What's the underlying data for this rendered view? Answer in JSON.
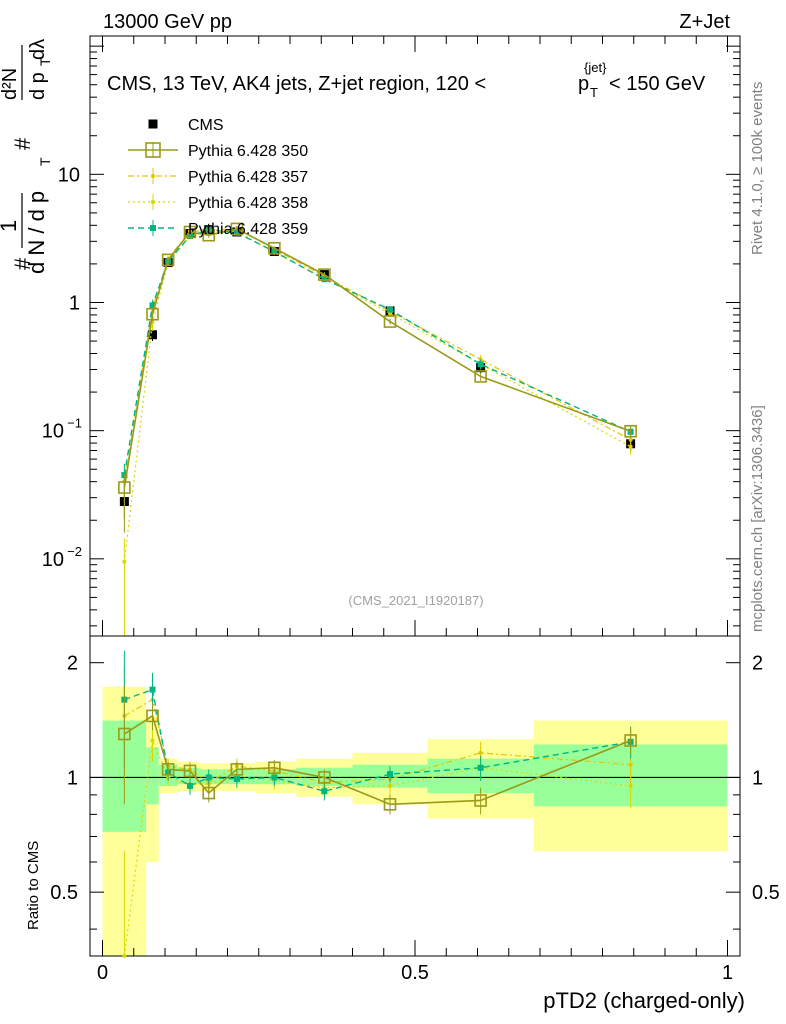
{
  "header": {
    "left": "13000 GeV pp",
    "right": "Z+Jet"
  },
  "side_labels": {
    "rivet": "Rivet 4.1.0, ≥ 100k events",
    "mcplots": "mcplots.cern.ch [arXiv:1306.3436]"
  },
  "watermark": "(CMS_2021_I1920187)",
  "plot_title": {
    "prefix": "CMS, 13 TeV, AK4 jets, Z+jet region, 120 <",
    "p": "p",
    "T": "T",
    "jet": "{jet}",
    "suffix": "< 150 GeV"
  },
  "y_axis_label": {
    "hash1": "#",
    "one": "1",
    "dN": "d N / d p",
    "T": "T",
    "hash2": "#",
    "d2N_num": "d²N",
    "d2N_den": "d p",
    "T2": "T",
    "dlambda": "dλ"
  },
  "colors": {
    "cms": "#000000",
    "p350": "#9a9a1a",
    "p357": "#e6c400",
    "p358": "#d8d800",
    "p359": "#00b580",
    "band_green": "#99ff99",
    "band_yellow": "#ffff99"
  },
  "chart_data": [
    {
      "type": "scatter",
      "panel": "main",
      "xlabel": "pTD2 (charged-only)",
      "ylabel": "1/N dN/dpT d2N/dpT dlambda",
      "yscale": "log",
      "xlim": [
        -0.02,
        1.02
      ],
      "ylim": [
        0.0025,
        120
      ],
      "y_ticks": [
        {
          "v": 0.01,
          "base": "10",
          "exp": "−2"
        },
        {
          "v": 0.1,
          "base": "10",
          "exp": "−1"
        },
        {
          "v": 1,
          "base": "1",
          "exp": ""
        },
        {
          "v": 10,
          "base": "10",
          "exp": ""
        }
      ],
      "x": [
        0.035,
        0.08,
        0.105,
        0.14,
        0.17,
        0.215,
        0.275,
        0.355,
        0.46,
        0.605,
        0.845
      ],
      "series": [
        {
          "name": "CMS",
          "key": "cms",
          "style": "marker",
          "values": [
            0.028,
            0.56,
            2.05,
            3.45,
            3.7,
            3.55,
            2.5,
            1.65,
            0.86,
            0.31,
            0.079
          ],
          "err_lo": [
            0.007,
            0.06,
            0.15,
            0.2,
            0.2,
            0.2,
            0.15,
            0.1,
            0.06,
            0.03,
            0.01
          ],
          "err_hi": [
            0.008,
            0.06,
            0.15,
            0.2,
            0.2,
            0.2,
            0.15,
            0.1,
            0.06,
            0.03,
            0.01
          ]
        },
        {
          "name": "Pythia 6.428 350",
          "key": "p350",
          "style": "solid-open-square",
          "values": [
            0.036,
            0.81,
            2.15,
            3.55,
            3.35,
            3.75,
            2.65,
            1.65,
            0.71,
            0.265,
            0.099
          ],
          "err_lo": [
            0.02,
            0.1,
            0.1,
            0.15,
            0.15,
            0.15,
            0.1,
            0.08,
            0.04,
            0.02,
            0.01
          ],
          "err_hi": [
            0.01,
            0.1,
            0.1,
            0.15,
            0.15,
            0.15,
            0.1,
            0.08,
            0.04,
            0.02,
            0.01
          ]
        },
        {
          "name": "Pythia 6.428 357",
          "key": "p357",
          "style": "dashdot-small",
          "values": [
            0.04,
            0.9,
            2.2,
            3.6,
            3.6,
            3.8,
            2.6,
            1.6,
            0.85,
            0.36,
            0.085
          ],
          "err_lo": [
            0.02,
            0.1,
            0.1,
            0.15,
            0.15,
            0.15,
            0.1,
            0.08,
            0.04,
            0.03,
            0.01
          ],
          "err_hi": [
            0.015,
            0.1,
            0.1,
            0.15,
            0.15,
            0.15,
            0.1,
            0.08,
            0.04,
            0.03,
            0.01
          ]
        },
        {
          "name": "Pythia 6.428 358",
          "key": "p358",
          "style": "dotted-small",
          "values": [
            0.0095,
            0.7,
            2.05,
            3.3,
            3.55,
            3.6,
            2.45,
            1.55,
            0.82,
            0.33,
            0.075
          ],
          "err_lo": [
            0.007,
            0.1,
            0.1,
            0.15,
            0.15,
            0.15,
            0.1,
            0.08,
            0.04,
            0.03,
            0.01
          ],
          "err_hi": [
            0.005,
            0.1,
            0.1,
            0.15,
            0.15,
            0.15,
            0.1,
            0.08,
            0.04,
            0.03,
            0.01
          ]
        },
        {
          "name": "Pythia 6.428 359",
          "key": "p359",
          "style": "dashed-square",
          "values": [
            0.045,
            0.95,
            2.1,
            3.3,
            3.7,
            3.5,
            2.5,
            1.52,
            0.88,
            0.33,
            0.098
          ],
          "err_lo": [
            0.015,
            0.1,
            0.1,
            0.15,
            0.15,
            0.15,
            0.1,
            0.08,
            0.04,
            0.03,
            0.01
          ],
          "err_hi": [
            0.01,
            0.1,
            0.1,
            0.15,
            0.15,
            0.15,
            0.1,
            0.08,
            0.04,
            0.03,
            0.01
          ]
        }
      ]
    },
    {
      "type": "scatter",
      "panel": "ratio",
      "xlabel": "pTD2 (charged-only)",
      "ylabel": "Ratio to CMS",
      "xlim": [
        -0.02,
        1.02
      ],
      "ylim": [
        0.34,
        2.35
      ],
      "y_ticks": [
        0.5,
        1,
        2
      ],
      "x_ticks": [
        {
          "v": 0,
          "label": "0"
        },
        {
          "v": 0.5,
          "label": "0.5"
        },
        {
          "v": 1,
          "label": "1"
        }
      ],
      "reference": 1,
      "bins": [
        {
          "lo": 0.0,
          "hi": 0.07,
          "green": [
            0.72,
            1.41
          ],
          "yellow": [
            0.3,
            1.73
          ]
        },
        {
          "lo": 0.07,
          "hi": 0.09,
          "green": [
            0.85,
            1.2
          ],
          "yellow": [
            0.6,
            1.45
          ]
        },
        {
          "lo": 0.09,
          "hi": 0.12,
          "green": [
            0.95,
            1.08
          ],
          "yellow": [
            0.91,
            1.12
          ]
        },
        {
          "lo": 0.12,
          "hi": 0.155,
          "green": [
            0.96,
            1.06
          ],
          "yellow": [
            0.92,
            1.1
          ]
        },
        {
          "lo": 0.155,
          "hi": 0.185,
          "green": [
            0.96,
            1.05
          ],
          "yellow": [
            0.92,
            1.09
          ]
        },
        {
          "lo": 0.185,
          "hi": 0.245,
          "green": [
            0.96,
            1.05
          ],
          "yellow": [
            0.92,
            1.09
          ]
        },
        {
          "lo": 0.245,
          "hi": 0.31,
          "green": [
            0.96,
            1.05
          ],
          "yellow": [
            0.91,
            1.1
          ]
        },
        {
          "lo": 0.31,
          "hi": 0.4,
          "green": [
            0.95,
            1.06
          ],
          "yellow": [
            0.89,
            1.12
          ]
        },
        {
          "lo": 0.4,
          "hi": 0.52,
          "green": [
            0.94,
            1.08
          ],
          "yellow": [
            0.85,
            1.16
          ]
        },
        {
          "lo": 0.52,
          "hi": 0.69,
          "green": [
            0.91,
            1.12
          ],
          "yellow": [
            0.78,
            1.26
          ]
        },
        {
          "lo": 0.69,
          "hi": 1.0,
          "green": [
            0.84,
            1.22
          ],
          "yellow": [
            0.64,
            1.41
          ]
        }
      ],
      "x": [
        0.035,
        0.08,
        0.105,
        0.14,
        0.17,
        0.215,
        0.275,
        0.355,
        0.46,
        0.605,
        0.845
      ],
      "series": [
        {
          "name": "Pythia 6.428 350",
          "key": "p350",
          "values": [
            1.3,
            1.45,
            1.05,
            1.04,
            0.91,
            1.05,
            1.06,
            1.0,
            0.85,
            0.87,
            1.25
          ],
          "err": [
            0.45,
            0.12,
            0.05,
            0.05,
            0.05,
            0.05,
            0.05,
            0.05,
            0.05,
            0.07,
            0.1
          ]
        },
        {
          "name": "Pythia 6.428 357",
          "key": "p357",
          "values": [
            1.45,
            1.6,
            1.07,
            1.05,
            0.97,
            1.07,
            1.04,
            0.97,
            0.99,
            1.16,
            1.08
          ],
          "err": [
            0.5,
            0.15,
            0.05,
            0.05,
            0.05,
            0.05,
            0.05,
            0.05,
            0.05,
            0.08,
            0.12
          ]
        },
        {
          "name": "Pythia 6.428 358",
          "key": "p358",
          "values": [
            0.34,
            1.25,
            1.0,
            0.96,
            0.96,
            1.01,
            0.98,
            0.94,
            0.95,
            1.06,
            0.95
          ],
          "err": [
            0.3,
            0.15,
            0.05,
            0.05,
            0.05,
            0.05,
            0.05,
            0.05,
            0.05,
            0.08,
            0.12
          ]
        },
        {
          "name": "Pythia 6.428 359",
          "key": "p359",
          "values": [
            1.6,
            1.7,
            1.03,
            0.95,
            1.0,
            0.99,
            1.0,
            0.92,
            1.02,
            1.06,
            1.24
          ],
          "err": [
            0.55,
            0.18,
            0.05,
            0.05,
            0.05,
            0.05,
            0.05,
            0.05,
            0.05,
            0.08,
            0.12
          ]
        }
      ]
    }
  ]
}
